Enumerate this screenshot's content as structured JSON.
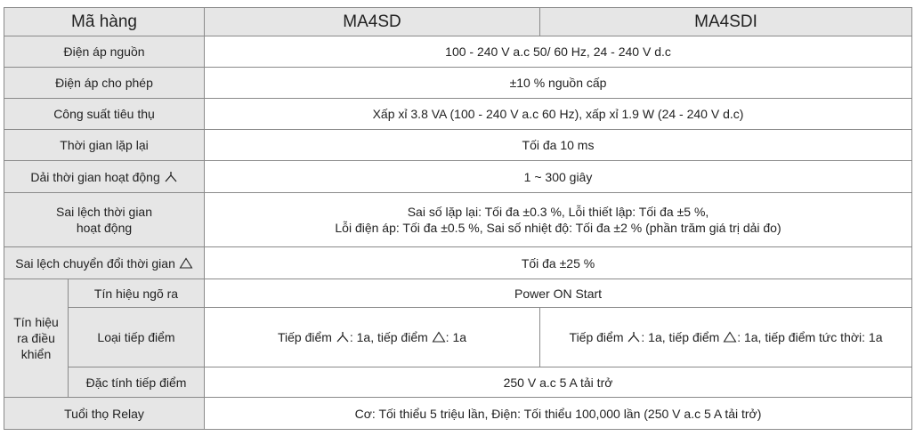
{
  "header": {
    "label": "Mã hàng",
    "model_1": "MA4SD",
    "model_2": "MA4SDI"
  },
  "rows": {
    "power_supply": {
      "label": "Điện áp nguồn",
      "value": "100 - 240 V a.c 50/ 60 Hz, 24 - 240 V d.c"
    },
    "allowable_voltage": {
      "label": "Điện áp cho phép",
      "value": "±10 % nguồn cấp"
    },
    "power_consumption": {
      "label": "Công suất tiêu thụ",
      "value": "Xấp xỉ 3.8 VA (100 - 240 V a.c 60 Hz), xấp xỉ 1.9 W (24 - 240 V d.c)"
    },
    "reset_time": {
      "label": "Thời gian lặp lại",
      "value": "Tối đa 10 ms"
    },
    "operating_range": {
      "label": "Dải thời gian hoạt động",
      "value": "1 ~ 300 giây"
    },
    "time_error": {
      "label_line1": "Sai lệch thời gian",
      "label_line2": "hoạt động",
      "value_line1": "Sai số lặp lại: Tối đa ±0.3 %, Lỗi thiết lập: Tối đa ±5 %,",
      "value_line2": "Lỗi điện áp: Tối đa ±0.5 %, Sai số nhiệt độ: Tối đa ±2 % (phần trăm giá trị dải đo)"
    },
    "transfer_error": {
      "label": "Sai lệch chuyển đổi thời gian",
      "value": "Tối đa ±25 %"
    },
    "control_output": {
      "group_line1": "Tín hiệu",
      "group_line2": "ra điều",
      "group_line3": "khiển",
      "signal": {
        "label": "Tín hiệu ngõ ra",
        "value": "Power ON Start"
      },
      "contact_type": {
        "label": "Loại tiếp điểm",
        "ma4sd_part1": "Tiếp điểm",
        "ma4sd_part2": ": 1a, tiếp điểm",
        "ma4sd_part3": ": 1a",
        "ma4sdi_part1": "Tiếp điểm",
        "ma4sdi_part2": ": 1a, tiếp điểm",
        "ma4sdi_part3": ": 1a, tiếp điểm tức thời: 1a"
      },
      "contact_rating": {
        "label": "Đặc tính tiếp điểm",
        "value": "250 V a.c 5 A tải trở"
      }
    },
    "relay_life": {
      "label": "Tuổi thọ Relay",
      "value": "Cơ: Tối thiểu 5 triệu lần, Điện: Tối thiểu 100,000 lần (250 V a.c 5 A tải trở)"
    }
  }
}
